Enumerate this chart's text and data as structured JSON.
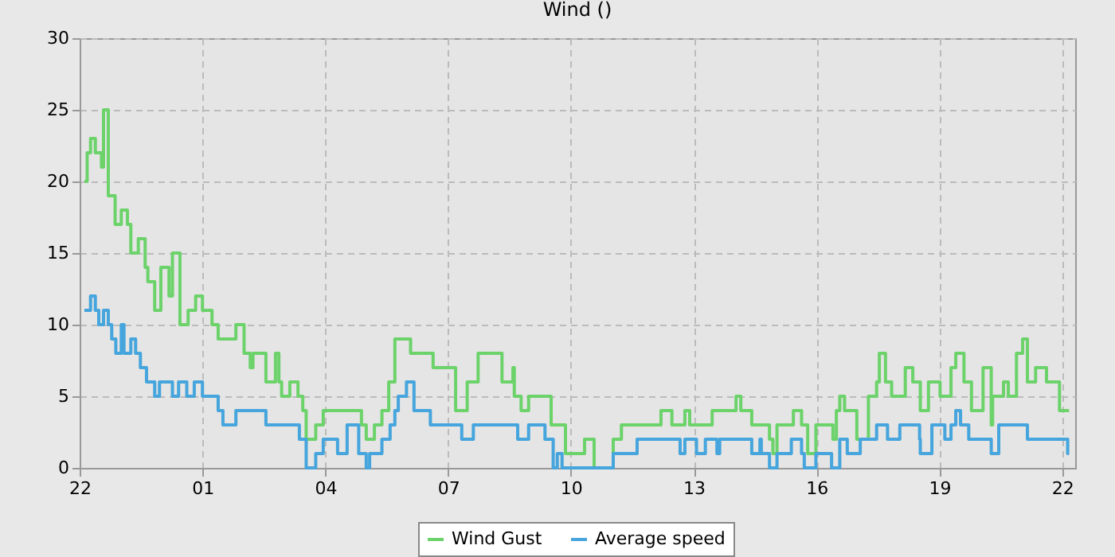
{
  "chart_data": {
    "type": "step",
    "title": "Wind ()",
    "xlim": [
      "--01-01T22:00",
      "--01-02T22:19"
    ],
    "ylim": [
      0,
      30
    ],
    "yticks": [
      0,
      5,
      10,
      15,
      20,
      25,
      30
    ],
    "xticks": [
      {
        "value": "--01-01T22:00",
        "label": "22"
      },
      {
        "value": "--01-02T01:00",
        "label": "01"
      },
      {
        "value": "--01-02T04:00",
        "label": "04"
      },
      {
        "value": "--01-02T07:00",
        "label": "07"
      },
      {
        "value": "--01-02T10:00",
        "label": "10"
      },
      {
        "value": "--01-02T13:00",
        "label": "13"
      },
      {
        "value": "--01-02T16:00",
        "label": "16"
      },
      {
        "value": "--01-02T19:00",
        "label": "19"
      },
      {
        "value": "--01-02T22:00",
        "label": "22"
      }
    ],
    "grid": true,
    "legend": "bottom",
    "line_style": "solid",
    "series": [
      {
        "name": "Wind Gust",
        "color": "#6cd26a",
        "x": [
          "--01-01T22:07",
          "--01-01T22:11",
          "--01-01T22:16",
          "--01-01T22:23",
          "--01-01T22:32",
          "--01-01T22:35",
          "--01-01T22:42",
          "--01-01T22:52",
          "--01-01T23:01",
          "--01-01T23:10",
          "--01-01T23:15",
          "--01-01T23:26",
          "--01-01T23:36",
          "--01-01T23:40",
          "--01-01T23:50",
          "--01-01T23:59",
          "--01-02T00:11",
          "--01-02T00:16",
          "--01-02T00:27",
          "--01-02T00:39",
          "--01-02T00:50",
          "--01-02T01:00",
          "--01-02T01:14",
          "--01-02T01:23",
          "--01-02T01:49",
          "--01-02T02:01",
          "--01-02T02:10",
          "--01-02T02:14",
          "--01-02T02:33",
          "--01-02T02:47",
          "--01-02T02:52",
          "--01-02T02:56",
          "--01-02T03:08",
          "--01-02T03:20",
          "--01-02T03:27",
          "--01-02T03:32",
          "--01-02T03:46",
          "--01-02T03:57",
          "--01-02T04:53",
          "--01-02T05:00",
          "--01-02T05:12",
          "--01-02T05:23",
          "--01-02T05:33",
          "--01-02T05:42",
          "--01-02T06:05",
          "--01-02T06:38",
          "--01-02T07:11",
          "--01-02T07:28",
          "--01-02T07:44",
          "--01-02T08:19",
          "--01-02T08:35",
          "--01-02T08:37",
          "--01-02T08:47",
          "--01-02T08:58",
          "--01-02T09:31",
          "--01-02T09:52",
          "--01-02T10:20",
          "--01-02T10:34",
          "--01-02T11:02",
          "--01-02T11:14",
          "--01-02T12:12",
          "--01-02T12:28",
          "--01-02T12:47",
          "--01-02T12:54",
          "--01-02T13:27",
          "--01-02T14:02",
          "--01-02T14:09",
          "--01-02T14:25",
          "--01-02T14:51",
          "--01-02T14:56",
          "--01-02T15:02",
          "--01-02T15:26",
          "--01-02T15:38",
          "--01-02T15:47",
          "--01-02T15:59",
          "--01-02T16:24",
          "--01-02T16:29",
          "--01-02T16:34",
          "--01-02T16:41",
          "--01-02T16:59",
          "--01-02T17:16",
          "--01-02T17:28",
          "--01-02T17:32",
          "--01-02T17:41",
          "--01-02T17:50",
          "--01-02T18:10",
          "--01-02T18:21",
          "--01-02T18:32",
          "--01-02T18:44",
          "--01-02T19:01",
          "--01-02T19:17",
          "--01-02T19:24",
          "--01-02T19:36",
          "--01-02T19:47",
          "--01-02T20:04",
          "--01-02T20:16",
          "--01-02T20:18",
          "--01-02T20:34",
          "--01-02T20:41",
          "--01-02T20:53",
          "--01-02T21:02",
          "--01-02T21:09",
          "--01-02T21:21",
          "--01-02T21:37",
          "--01-02T21:56",
          "--01-02T22:10"
        ],
        "values": [
          20,
          22,
          23,
          22,
          21,
          25,
          19,
          17,
          18,
          17,
          15,
          16,
          14,
          13,
          11,
          14,
          12,
          15,
          10,
          11,
          12,
          11,
          10,
          9,
          10,
          8,
          7,
          8,
          6,
          8,
          6,
          5,
          6,
          5,
          4,
          2,
          3,
          4,
          3,
          2,
          3,
          4,
          6,
          9,
          8,
          7,
          4,
          6,
          8,
          6,
          7,
          5,
          4,
          5,
          3,
          1,
          2,
          0,
          2,
          3,
          4,
          3,
          4,
          3,
          4,
          5,
          4,
          3,
          2,
          1,
          3,
          4,
          3,
          1,
          3,
          2,
          4,
          5,
          4,
          2,
          5,
          6,
          8,
          6,
          5,
          7,
          6,
          4,
          6,
          5,
          7,
          8,
          6,
          4,
          7,
          3,
          5,
          6,
          5,
          8,
          9,
          6,
          7,
          6,
          4,
          4
        ]
      },
      {
        "name": "Average speed",
        "color": "#45a5dc",
        "x": [
          "--01-01T22:07",
          "--01-01T22:11",
          "--01-01T22:16",
          "--01-01T22:23",
          "--01-01T22:28",
          "--01-01T22:35",
          "--01-01T22:42",
          "--01-01T22:47",
          "--01-01T22:53",
          "--01-01T23:01",
          "--01-01T23:05",
          "--01-01T23:15",
          "--01-01T23:22",
          "--01-01T23:29",
          "--01-01T23:38",
          "--01-01T23:50",
          "--01-01T23:57",
          "--01-02T00:16",
          "--01-02T00:25",
          "--01-02T00:37",
          "--01-02T00:48",
          "--01-02T01:00",
          "--01-02T01:23",
          "--01-02T01:30",
          "--01-02T01:49",
          "--01-02T02:33",
          "--01-02T03:22",
          "--01-02T03:32",
          "--01-02T03:46",
          "--01-02T03:57",
          "--01-02T04:18",
          "--01-02T04:32",
          "--01-02T04:49",
          "--01-02T05:00",
          "--01-02T05:05",
          "--01-02T05:23",
          "--01-02T05:35",
          "--01-02T05:42",
          "--01-02T05:47",
          "--01-02T05:59",
          "--01-02T06:10",
          "--01-02T06:34",
          "--01-02T07:20",
          "--01-02T07:37",
          "--01-02T08:42",
          "--01-02T08:58",
          "--01-02T09:22",
          "--01-02T09:34",
          "--01-02T09:40",
          "--01-02T09:47",
          "--01-02T11:02",
          "--01-02T11:37",
          "--01-02T12:40",
          "--01-02T12:47",
          "--01-02T13:04",
          "--01-02T13:17",
          "--01-02T13:34",
          "--01-02T13:38",
          "--01-02T14:25",
          "--01-02T14:37",
          "--01-02T14:39",
          "--01-02T14:51",
          "--01-02T15:02",
          "--01-02T15:23",
          "--01-02T15:38",
          "--01-02T15:42",
          "--01-02T15:59",
          "--01-02T16:22",
          "--01-02T16:34",
          "--01-02T16:45",
          "--01-02T17:04",
          "--01-02T17:28",
          "--01-02T17:44",
          "--01-02T18:02",
          "--01-02T18:31",
          "--01-02T18:32",
          "--01-02T18:49",
          "--01-02T19:08",
          "--01-02T19:17",
          "--01-02T19:24",
          "--01-02T19:31",
          "--01-02T19:43",
          "--01-02T20:16",
          "--01-02T20:27",
          "--01-02T21:09",
          "--01-02T22:08",
          "--01-02T22:10"
        ],
        "values": [
          11,
          11,
          12,
          11,
          10,
          11,
          10,
          9,
          8,
          10,
          8,
          9,
          8,
          7,
          6,
          5,
          6,
          5,
          6,
          5,
          6,
          5,
          4,
          3,
          4,
          3,
          2,
          0,
          1,
          2,
          1,
          3,
          1,
          0,
          1,
          2,
          3,
          4,
          5,
          6,
          4,
          3,
          2,
          3,
          2,
          3,
          2,
          0,
          1,
          0,
          1,
          2,
          1,
          2,
          1,
          2,
          1,
          2,
          1,
          2,
          1,
          0,
          1,
          2,
          1,
          0,
          1,
          0,
          2,
          1,
          2,
          3,
          2,
          3,
          2,
          1,
          3,
          2,
          3,
          4,
          3,
          2,
          1,
          3,
          2,
          1,
          1
        ]
      }
    ]
  }
}
